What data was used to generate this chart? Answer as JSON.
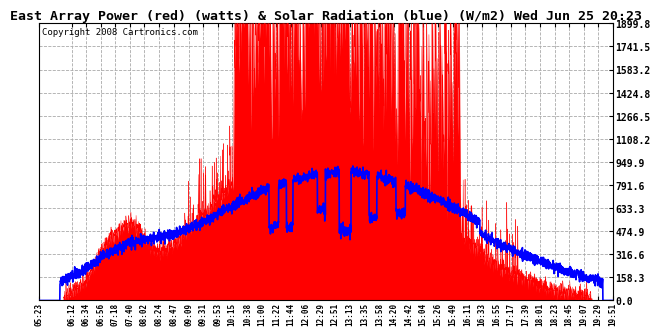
{
  "title": "East Array Power (red) (watts) & Solar Radiation (blue) (W/m2) Wed Jun 25 20:23",
  "copyright": "Copyright 2008 Cartronics.com",
  "y_ticks": [
    0.0,
    158.3,
    316.6,
    474.9,
    633.3,
    791.6,
    949.9,
    1108.2,
    1266.5,
    1424.8,
    1583.2,
    1741.5,
    1899.8
  ],
  "x_labels": [
    "05:23",
    "06:12",
    "06:34",
    "06:56",
    "07:18",
    "07:40",
    "08:02",
    "08:24",
    "08:47",
    "09:09",
    "09:31",
    "09:53",
    "10:15",
    "10:38",
    "11:00",
    "11:22",
    "11:44",
    "12:06",
    "12:29",
    "12:51",
    "13:13",
    "13:35",
    "13:58",
    "14:20",
    "14:42",
    "15:04",
    "15:26",
    "15:49",
    "16:11",
    "16:33",
    "16:55",
    "17:17",
    "17:39",
    "18:01",
    "18:23",
    "18:45",
    "19:07",
    "19:29",
    "19:51"
  ],
  "y_max": 1899.8,
  "y_min": 0.0,
  "bg_color": "#ffffff",
  "red_color": "#ff0000",
  "blue_color": "#0000ff",
  "grid_color": "#aaaaaa"
}
